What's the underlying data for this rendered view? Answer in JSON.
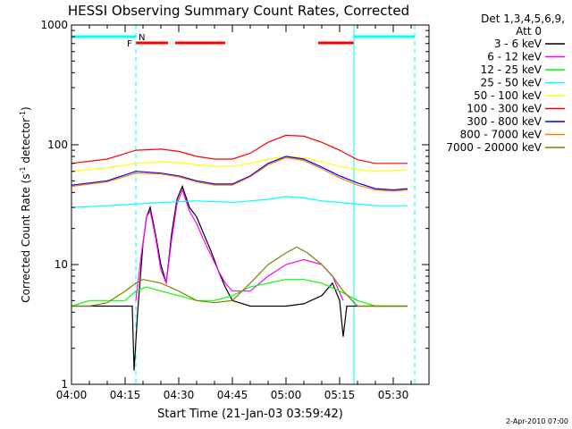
{
  "chart_data": {
    "type": "line",
    "title": "HESSI Observing Summary Count Rates, Corrected",
    "xlabel": "Start Time (21-Jan-03 03:59:42)",
    "ylabel_main": "Corrected Count Rate (s",
    "ylabel_sup1": "-1",
    "ylabel_mid": " detector",
    "ylabel_sup2": "-1",
    "ylabel_end": ")",
    "yscale": "log",
    "ylim": [
      1,
      1000
    ],
    "xlim": [
      0,
      100
    ],
    "x_units": "minutes after 04:00",
    "y_ticks": [
      {
        "value": 1,
        "label": "1"
      },
      {
        "value": 10,
        "label": "10"
      },
      {
        "value": 100,
        "label": "100"
      },
      {
        "value": 1000,
        "label": "1000"
      }
    ],
    "x_ticks": [
      {
        "value": 0,
        "label": "04:00"
      },
      {
        "value": 15,
        "label": "04:15"
      },
      {
        "value": 30,
        "label": "04:30"
      },
      {
        "value": 45,
        "label": "04:45"
      },
      {
        "value": 60,
        "label": "05:00"
      },
      {
        "value": 75,
        "label": "05:15"
      },
      {
        "value": 90,
        "label": "05:30"
      }
    ],
    "legend_header": [
      "Det 1,3,4,5,6,9,",
      "Att 0"
    ],
    "legend_placement": "right",
    "footer": "2-Apr-2010 07:00",
    "flags": {
      "night_label": "N",
      "night_color": "#00ffff",
      "night_segments": [
        [
          0,
          18
        ],
        [
          79,
          96
        ]
      ],
      "night_lines_solid": [
        79
      ],
      "night_lines_dashed": [
        18,
        96
      ],
      "flare_label": "F",
      "flare_color": "#ff0000",
      "flare_segments": [
        [
          18,
          27
        ],
        [
          29,
          43
        ],
        [
          69,
          79
        ]
      ]
    },
    "series": [
      {
        "name": "3 - 6 keV",
        "color": "#000000",
        "points": [
          [
            0,
            4.5
          ],
          [
            5,
            4.5
          ],
          [
            10,
            4.5
          ],
          [
            15,
            4.5
          ],
          [
            17,
            4.5
          ],
          [
            17.5,
            1.3
          ],
          [
            18.5,
            4
          ],
          [
            20,
            15
          ],
          [
            21,
            25
          ],
          [
            22,
            30
          ],
          [
            23.5,
            18
          ],
          [
            25,
            10
          ],
          [
            26.5,
            7
          ],
          [
            28,
            18
          ],
          [
            29.5,
            35
          ],
          [
            31,
            45
          ],
          [
            33,
            30
          ],
          [
            35,
            25
          ],
          [
            37,
            18
          ],
          [
            39,
            13
          ],
          [
            41,
            9
          ],
          [
            43,
            6.5
          ],
          [
            45,
            5
          ],
          [
            50,
            4.5
          ],
          [
            55,
            4.5
          ],
          [
            60,
            4.5
          ],
          [
            65,
            4.7
          ],
          [
            70,
            5.5
          ],
          [
            73,
            7
          ],
          [
            75,
            5
          ],
          [
            76,
            2.5
          ],
          [
            77,
            4.5
          ],
          [
            80,
            4.5
          ],
          [
            85,
            4.5
          ],
          [
            90,
            4.5
          ],
          [
            94,
            4.5
          ]
        ]
      },
      {
        "name": "6 - 12 keV",
        "color": "#ff00ff",
        "points": [
          [
            18,
            5
          ],
          [
            19.5,
            12
          ],
          [
            21,
            25
          ],
          [
            22,
            28
          ],
          [
            23.5,
            17
          ],
          [
            25,
            9
          ],
          [
            26.5,
            7
          ],
          [
            28,
            16
          ],
          [
            29.5,
            32
          ],
          [
            31,
            42
          ],
          [
            33,
            28
          ],
          [
            35,
            22
          ],
          [
            37,
            16
          ],
          [
            39,
            12
          ],
          [
            41,
            9
          ],
          [
            43,
            7
          ],
          [
            45,
            6
          ],
          [
            50,
            6
          ],
          [
            55,
            8
          ],
          [
            60,
            10
          ],
          [
            65,
            11
          ],
          [
            70,
            10
          ],
          [
            73,
            8
          ],
          [
            76,
            5
          ]
        ]
      },
      {
        "name": "12 - 25 keV",
        "color": "#00ff00",
        "points": [
          [
            0,
            4.5
          ],
          [
            5,
            5
          ],
          [
            10,
            5
          ],
          [
            15,
            5
          ],
          [
            18,
            6
          ],
          [
            21,
            6.5
          ],
          [
            25,
            6
          ],
          [
            30,
            5.5
          ],
          [
            35,
            5
          ],
          [
            40,
            5
          ],
          [
            45,
            5.5
          ],
          [
            50,
            6.5
          ],
          [
            55,
            7
          ],
          [
            60,
            7.5
          ],
          [
            65,
            7.5
          ],
          [
            70,
            7
          ],
          [
            75,
            6
          ],
          [
            80,
            5
          ],
          [
            85,
            4.5
          ],
          [
            90,
            4.5
          ],
          [
            94,
            4.5
          ]
        ]
      },
      {
        "name": "25 - 50 keV",
        "color": "#00ffff",
        "points": [
          [
            0,
            30
          ],
          [
            10,
            31
          ],
          [
            18,
            32
          ],
          [
            25,
            33
          ],
          [
            35,
            34
          ],
          [
            45,
            33
          ],
          [
            50,
            34
          ],
          [
            55,
            35
          ],
          [
            60,
            37
          ],
          [
            65,
            36
          ],
          [
            70,
            34
          ],
          [
            75,
            33
          ],
          [
            80,
            32
          ],
          [
            85,
            31
          ],
          [
            90,
            31
          ],
          [
            94,
            31
          ]
        ]
      },
      {
        "name": "50 - 100 keV",
        "color": "#ffff00",
        "points": [
          [
            0,
            60
          ],
          [
            10,
            64
          ],
          [
            18,
            70
          ],
          [
            25,
            72
          ],
          [
            30,
            71
          ],
          [
            35,
            68
          ],
          [
            40,
            66
          ],
          [
            45,
            66
          ],
          [
            50,
            70
          ],
          [
            55,
            76
          ],
          [
            60,
            80
          ],
          [
            65,
            78
          ],
          [
            70,
            72
          ],
          [
            75,
            66
          ],
          [
            80,
            62
          ],
          [
            85,
            60
          ],
          [
            90,
            61
          ],
          [
            94,
            62
          ]
        ]
      },
      {
        "name": "100 - 300 keV",
        "color": "#ff0000",
        "points": [
          [
            0,
            70
          ],
          [
            10,
            76
          ],
          [
            18,
            90
          ],
          [
            25,
            92
          ],
          [
            30,
            88
          ],
          [
            35,
            80
          ],
          [
            40,
            76
          ],
          [
            45,
            76
          ],
          [
            50,
            85
          ],
          [
            55,
            105
          ],
          [
            60,
            120
          ],
          [
            65,
            118
          ],
          [
            70,
            105
          ],
          [
            75,
            90
          ],
          [
            80,
            75
          ],
          [
            85,
            70
          ],
          [
            90,
            70
          ],
          [
            94,
            70
          ]
        ]
      },
      {
        "name": "300 - 800 keV",
        "color": "#0000ff",
        "points": [
          [
            0,
            46
          ],
          [
            10,
            50
          ],
          [
            18,
            60
          ],
          [
            25,
            58
          ],
          [
            30,
            55
          ],
          [
            35,
            50
          ],
          [
            40,
            47
          ],
          [
            45,
            47
          ],
          [
            50,
            55
          ],
          [
            55,
            70
          ],
          [
            60,
            80
          ],
          [
            65,
            76
          ],
          [
            70,
            65
          ],
          [
            75,
            55
          ],
          [
            80,
            48
          ],
          [
            85,
            43
          ],
          [
            90,
            42
          ],
          [
            94,
            43
          ]
        ]
      },
      {
        "name": "800 - 7000 keV",
        "color": "#ff8000",
        "points": [
          [
            0,
            45
          ],
          [
            10,
            49
          ],
          [
            18,
            58
          ],
          [
            25,
            57
          ],
          [
            30,
            54
          ],
          [
            35,
            49
          ],
          [
            40,
            46
          ],
          [
            45,
            46
          ],
          [
            50,
            54
          ],
          [
            55,
            68
          ],
          [
            60,
            78
          ],
          [
            65,
            74
          ],
          [
            70,
            63
          ],
          [
            75,
            53
          ],
          [
            80,
            46
          ],
          [
            85,
            42
          ],
          [
            90,
            41
          ],
          [
            94,
            42
          ]
        ]
      },
      {
        "name": "7000 - 20000 keV",
        "color": "#808000",
        "points": [
          [
            0,
            4.5
          ],
          [
            5,
            4.5
          ],
          [
            10,
            4.8
          ],
          [
            15,
            6
          ],
          [
            18,
            7
          ],
          [
            20,
            7.5
          ],
          [
            25,
            7
          ],
          [
            30,
            6
          ],
          [
            35,
            5
          ],
          [
            40,
            4.8
          ],
          [
            45,
            5
          ],
          [
            50,
            7
          ],
          [
            55,
            10
          ],
          [
            60,
            12.5
          ],
          [
            63,
            14
          ],
          [
            66,
            12.5
          ],
          [
            70,
            10
          ],
          [
            73,
            8
          ],
          [
            76,
            6
          ],
          [
            80,
            4.5
          ],
          [
            85,
            4.5
          ],
          [
            90,
            4.5
          ],
          [
            94,
            4.5
          ]
        ]
      }
    ]
  }
}
